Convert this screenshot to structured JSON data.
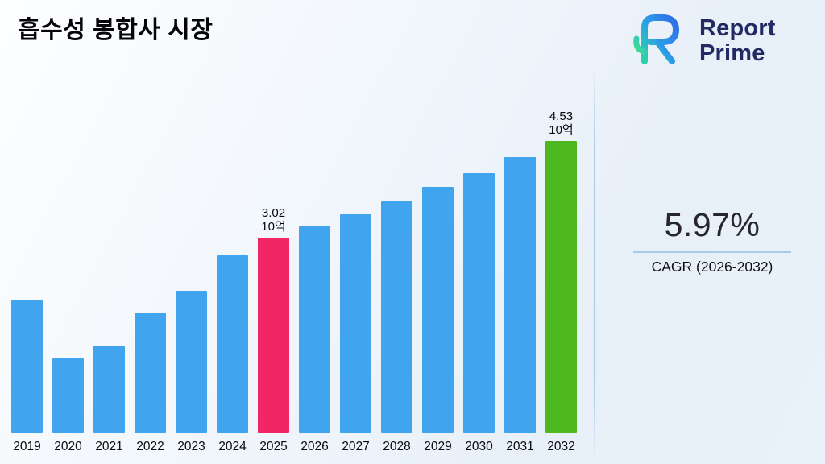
{
  "page": {
    "title": "흡수성 봉합사 시장"
  },
  "logo": {
    "line1": "Report",
    "line2": "Prime"
  },
  "stats": {
    "value": "5.97%",
    "label": "CAGR (2026-2032)"
  },
  "chart_data": {
    "type": "bar",
    "title": "흡수성 봉합사 시장",
    "categories": [
      "2019",
      "2020",
      "2021",
      "2022",
      "2023",
      "2024",
      "2025",
      "2026",
      "2027",
      "2028",
      "2029",
      "2030",
      "2031",
      "2032"
    ],
    "values": [
      2.05,
      1.15,
      1.35,
      1.85,
      2.2,
      2.75,
      3.02,
      3.2,
      3.39,
      3.59,
      3.81,
      4.03,
      4.27,
      4.53
    ],
    "unit": "10억",
    "annotations": [
      {
        "year": "2025",
        "value": "3.02",
        "unit": "10억"
      },
      {
        "year": "2032",
        "value": "4.53",
        "unit": "10억"
      }
    ],
    "colors": {
      "default": "#41a4ee",
      "2025": "#f12765",
      "2032": "#4eb81f"
    },
    "xlabel": "",
    "ylabel": "",
    "ylim": [
      0,
      5.3
    ],
    "grid": false,
    "legend": false
  }
}
